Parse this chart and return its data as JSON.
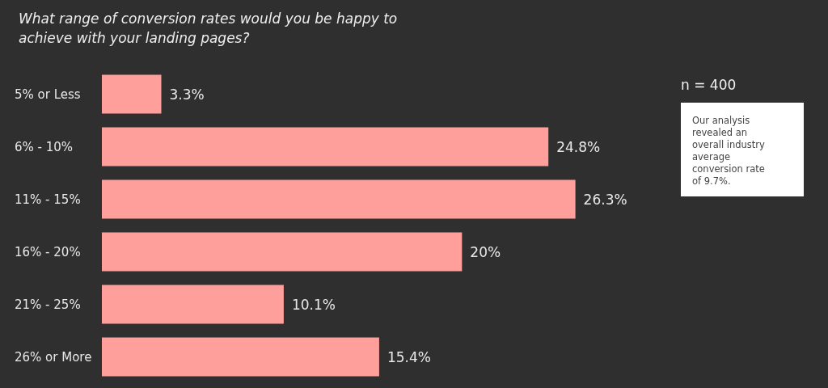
{
  "chart_data": {
    "type": "bar",
    "orientation": "horizontal",
    "title": "What range of conversion rates would you be happy to achieve with your landing pages?",
    "categories": [
      "5% or Less",
      "6% - 10%",
      "11% - 15%",
      "16% - 20%",
      "21% - 25%",
      "26% or More"
    ],
    "values": [
      3.3,
      24.8,
      26.3,
      20,
      10.1,
      15.4
    ],
    "value_labels": [
      "3.3%",
      "24.8%",
      "26.3%",
      "20%",
      "10.1%",
      "15.4%"
    ],
    "color": "#ff9f9c",
    "annotations": [
      "n = 400",
      "Our analysis revealed an overall industry average conversion rate of 9.7%."
    ]
  }
}
